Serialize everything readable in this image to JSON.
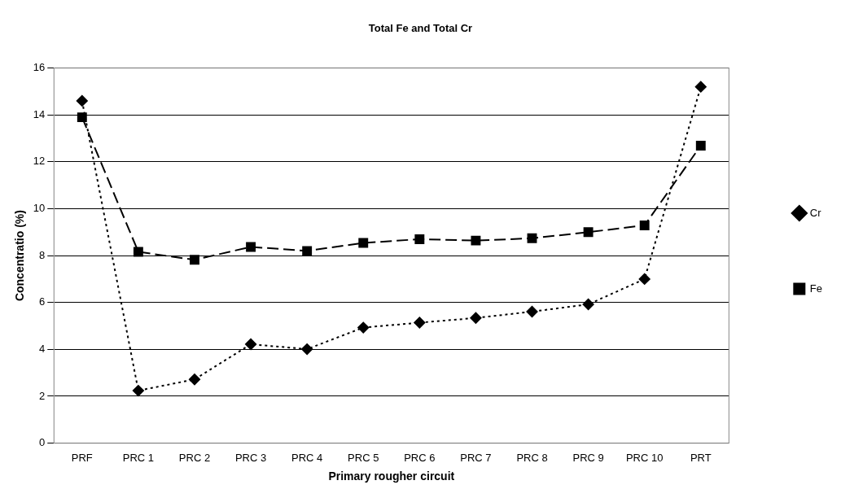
{
  "chart_data": {
    "type": "line",
    "title": "Total Fe and Total Cr",
    "xlabel": "Primary rougher circuit",
    "ylabel": "Concentratio (%)",
    "categories": [
      "PRF",
      "PRC 1",
      "PRC 2",
      "PRC 3",
      "PRC 4",
      "PRC 5",
      "PRC 6",
      "PRC 7",
      "PRC 8",
      "PRC 9",
      "PRC 10",
      "PRT"
    ],
    "series": [
      {
        "name": "Cr",
        "color": "#000000",
        "marker": "diamond",
        "line_style": "dotted",
        "values": [
          14.6,
          2.24,
          2.72,
          4.22,
          4.01,
          4.93,
          5.14,
          5.34,
          5.61,
          5.92,
          7.0,
          15.2
        ]
      },
      {
        "name": "Fe",
        "color": "#000000",
        "marker": "square",
        "line_style": "dashed",
        "values": [
          13.9,
          8.16,
          7.82,
          8.37,
          8.2,
          8.54,
          8.7,
          8.64,
          8.74,
          9.0,
          9.29,
          12.69
        ]
      }
    ],
    "ylim": [
      0,
      16
    ],
    "yticks": [
      0,
      2,
      4,
      6,
      8,
      10,
      12,
      14,
      16
    ],
    "grid": "y",
    "legend": "right"
  }
}
